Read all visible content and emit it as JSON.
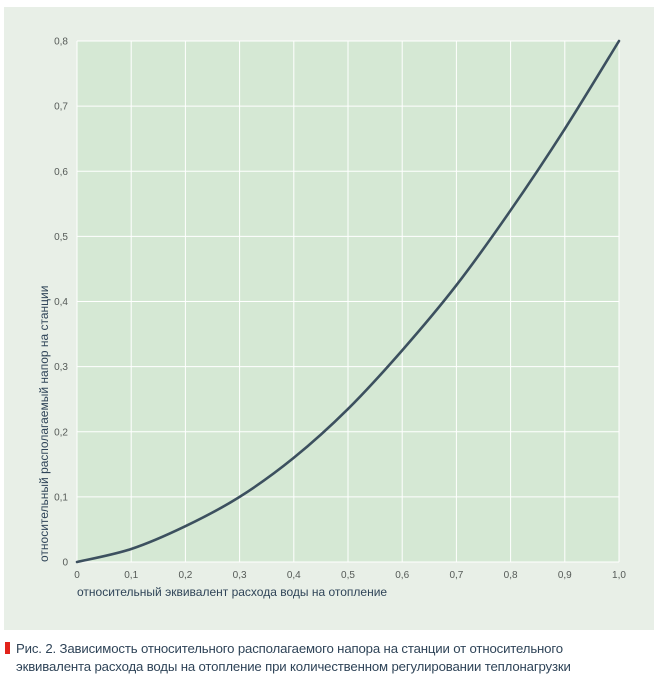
{
  "colors": {
    "panel_background": "#e8efe7",
    "plot_background": "#d5e8d4",
    "grid": "#ffffff",
    "curve": "#3c505f",
    "caption_marker": "#e2231a",
    "caption_text": "#2f4458"
  },
  "chart_data": {
    "type": "line",
    "title": "",
    "xlabel": "относительный эквивалент расхода воды на отопление",
    "ylabel": "относительный располагаемый напор на станции",
    "xlim": [
      0,
      1.0
    ],
    "ylim": [
      0,
      0.8
    ],
    "grid": true,
    "x_ticks": [
      0,
      0.1,
      0.2,
      0.3,
      0.4,
      0.5,
      0.6,
      0.7,
      0.8,
      0.9,
      1.0
    ],
    "x_tick_labels": [
      "0",
      "0,1",
      "0,2",
      "0,3",
      "0,4",
      "0,5",
      "0,6",
      "0,7",
      "0,8",
      "0,9",
      "1,0"
    ],
    "y_ticks": [
      0,
      0.1,
      0.2,
      0.3,
      0.4,
      0.5,
      0.6,
      0.7,
      0.8
    ],
    "y_tick_labels": [
      "0",
      "0,1",
      "0,2",
      "0,3",
      "0,4",
      "0,5",
      "0,6",
      "0,7",
      "0,8"
    ],
    "series": [
      {
        "name": "относительный располагаемый напор",
        "x": [
          0,
          0.1,
          0.2,
          0.3,
          0.4,
          0.5,
          0.6,
          0.7,
          0.8,
          0.9,
          1.0
        ],
        "y": [
          0,
          0.02,
          0.055,
          0.1,
          0.16,
          0.235,
          0.325,
          0.425,
          0.54,
          0.665,
          0.8
        ]
      }
    ]
  },
  "caption": {
    "line1": "Рис. 2. Зависимость относительного располагаемого напора на станции от относительного",
    "line2": "эквивалента расхода воды на отопление при количественном регулировании теплонагрузки"
  }
}
